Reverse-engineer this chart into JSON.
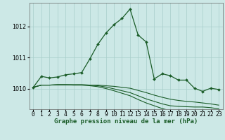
{
  "title": "Graphe pression niveau de la mer (hPa)",
  "background_color": "#cce8e6",
  "grid_color": "#a8ceca",
  "line_color": "#1a5c28",
  "xlim": [
    -0.5,
    23.5
  ],
  "ylim": [
    1009.35,
    1012.75
  ],
  "yticks": [
    1010,
    1011,
    1012
  ],
  "x_labels": [
    "0",
    "1",
    "2",
    "3",
    "4",
    "5",
    "6",
    "7",
    "8",
    "9",
    "10",
    "11",
    "12",
    "13",
    "14",
    "15",
    "16",
    "17",
    "18",
    "19",
    "20",
    "21",
    "22",
    "23"
  ],
  "main_series": [
    1010.05,
    1010.4,
    1010.35,
    1010.38,
    1010.45,
    1010.48,
    1010.52,
    1010.95,
    1011.42,
    1011.78,
    1012.05,
    1012.25,
    1012.55,
    1011.72,
    1011.5,
    1010.32,
    1010.48,
    1010.42,
    1010.28,
    1010.28,
    1010.02,
    1009.92,
    1010.02,
    1009.98
  ],
  "ref_line1": [
    1010.05,
    1010.12,
    1010.12,
    1010.13,
    1010.13,
    1010.13,
    1010.13,
    1010.12,
    1010.12,
    1010.1,
    1010.08,
    1010.05,
    1010.02,
    1009.95,
    1009.88,
    1009.8,
    1009.73,
    1009.67,
    1009.63,
    1009.6,
    1009.58,
    1009.55,
    1009.52,
    1009.48
  ],
  "ref_line2": [
    1010.05,
    1010.12,
    1010.12,
    1010.13,
    1010.13,
    1010.13,
    1010.13,
    1010.12,
    1010.1,
    1010.06,
    1010.0,
    1009.94,
    1009.88,
    1009.78,
    1009.68,
    1009.6,
    1009.52,
    1009.46,
    1009.44,
    1009.43,
    1009.42,
    1009.42,
    1009.4,
    1009.36
  ],
  "ref_line3": [
    1010.05,
    1010.12,
    1010.12,
    1010.13,
    1010.13,
    1010.12,
    1010.12,
    1010.1,
    1010.07,
    1010.01,
    1009.94,
    1009.86,
    1009.78,
    1009.66,
    1009.55,
    1009.46,
    1009.37,
    1009.3,
    1009.28,
    1009.27,
    1009.26,
    1009.26,
    1009.22,
    1009.18
  ],
  "title_fontsize": 6.5,
  "tick_fontsize": 5.8
}
